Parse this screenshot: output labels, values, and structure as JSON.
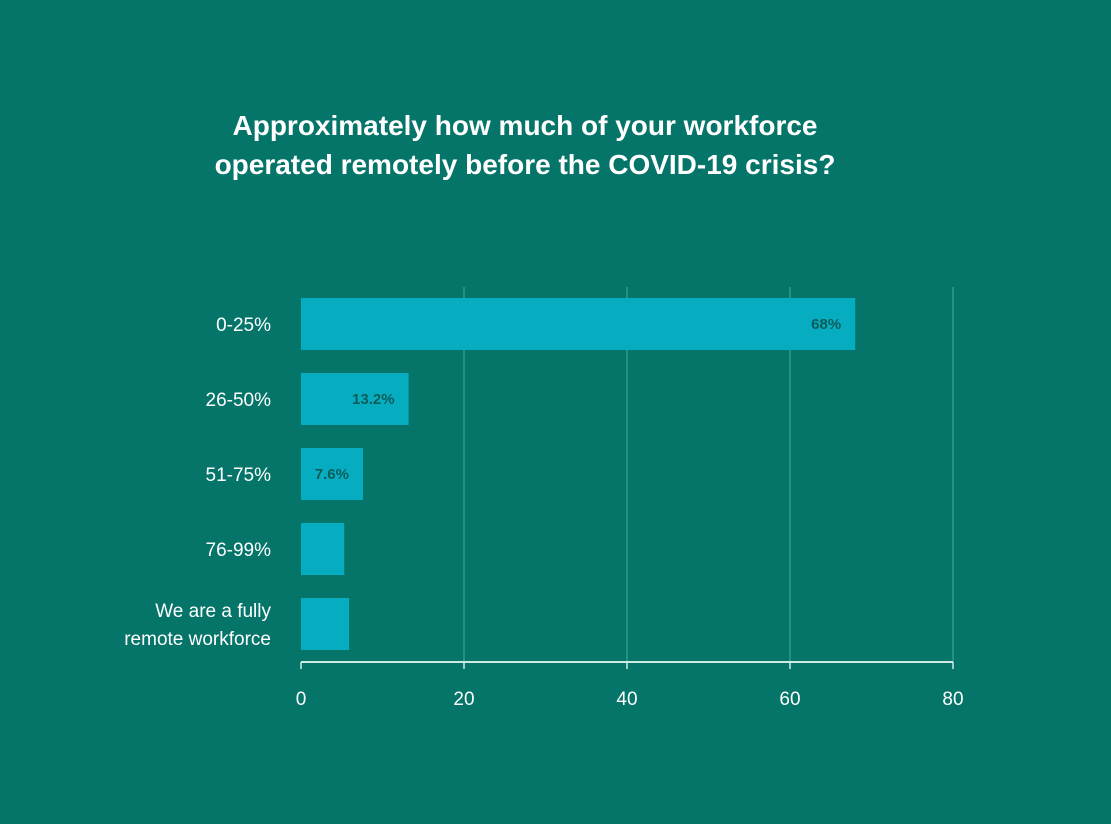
{
  "chart_data": {
    "type": "bar",
    "orientation": "horizontal",
    "title_lines": [
      "Approximately how much of your workforce",
      "operated remotely before the COVID-19 crisis?"
    ],
    "categories": [
      [
        "0-25%"
      ],
      [
        "26-50%"
      ],
      [
        "51-75%"
      ],
      [
        "76-99%"
      ],
      [
        "We are a fully",
        "remote workforce"
      ]
    ],
    "values": [
      68,
      13.2,
      7.6,
      5.3,
      5.9
    ],
    "data_labels": [
      "68%",
      "13.2%",
      "7.6%",
      "",
      ""
    ],
    "xlim": [
      0,
      80
    ],
    "xticks": [
      0,
      20,
      40,
      60,
      80
    ],
    "grid": true,
    "colors": {
      "background": "#05756a",
      "bar": "#06adc1",
      "grid": "#2d9c8c",
      "axis": "#cfe9e3",
      "data_label": "#0b5d5a"
    }
  }
}
